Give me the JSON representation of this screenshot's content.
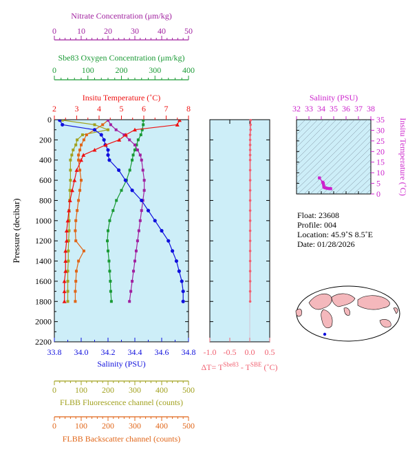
{
  "colors": {
    "nitrate": "#a0209f",
    "oxygen": "#1a9a35",
    "temperature": "#ee1111",
    "salinity": "#1010dd",
    "fluorescence": "#a1a11e",
    "backscatter": "#e06518",
    "delta": "#f06070",
    "ts_salinity": "#cc22cc",
    "panel_bg": "#cdeef8"
  },
  "info": {
    "float": "Float:  23608",
    "profile": "Profile:  004",
    "location": "Location:  45.9˚S   8.5˚E",
    "date": "Date:  01/28/2026"
  },
  "chart_data": [
    {
      "type": "line",
      "name": "main-profile",
      "ylabel": "Pressure (decibar)",
      "ylim": [
        2200,
        0
      ],
      "yticks": [
        0,
        200,
        400,
        600,
        800,
        1000,
        1200,
        1400,
        1600,
        1800,
        2000,
        2200
      ],
      "pressure": [
        5,
        50,
        100,
        150,
        200,
        250,
        300,
        350,
        400,
        500,
        600,
        700,
        800,
        900,
        1000,
        1100,
        1200,
        1300,
        1400,
        1500,
        1600,
        1700,
        1800
      ],
      "axes": [
        {
          "key": "nitrate",
          "label": "Nitrate Concentration (μm/kg)",
          "range": [
            0,
            50
          ],
          "ticks": [
            "0",
            "10",
            "20",
            "30",
            "40",
            "50"
          ]
        },
        {
          "key": "oxygen",
          "label": "Sbe83 Oxygen Concentration (μm/kg)",
          "range": [
            0,
            400
          ],
          "ticks": [
            "0",
            "100",
            "200",
            "300",
            "400"
          ]
        },
        {
          "key": "temperature",
          "label": "Insitu Temperature (˚C)",
          "range": [
            2,
            8
          ],
          "ticks": [
            "2",
            "3",
            "4",
            "5",
            "6",
            "7",
            "8"
          ]
        },
        {
          "key": "salinity",
          "label": "Salinity (PSU)",
          "range": [
            33.8,
            34.8
          ],
          "ticks": [
            "33.8",
            "34.0",
            "34.2",
            "34.4",
            "34.6",
            "34.8"
          ]
        },
        {
          "key": "fluorescence",
          "label": "FLBB Fluorescence channel (counts)",
          "range": [
            0,
            500
          ],
          "ticks": [
            "0",
            "100",
            "200",
            "300",
            "400",
            "500"
          ]
        },
        {
          "key": "backscatter",
          "label": "FLBB Backscatter channel (counts)",
          "range": [
            0,
            500
          ],
          "ticks": [
            "0",
            "100",
            "200",
            "300",
            "400",
            "500"
          ]
        }
      ],
      "series": [
        {
          "key": "nitrate",
          "values": [
            20,
            21,
            23,
            26,
            28,
            30,
            31,
            32,
            32.5,
            33,
            33.5,
            33.5,
            33,
            32.5,
            32,
            31.5,
            31,
            30.5,
            30,
            29.5,
            29,
            28.5,
            28
          ]
        },
        {
          "key": "oxygen",
          "values": [
            265,
            265,
            262,
            258,
            250,
            245,
            240,
            235,
            232,
            225,
            215,
            200,
            185,
            175,
            165,
            160,
            158,
            160,
            163,
            165,
            167,
            168,
            170
          ]
        },
        {
          "key": "temperature",
          "values": [
            7.6,
            7.5,
            5.6,
            5.2,
            4.9,
            4.3,
            3.8,
            3.3,
            3.2,
            3.0,
            2.9,
            2.8,
            2.7,
            2.65,
            2.6,
            2.55,
            2.55,
            2.5,
            2.5,
            2.5,
            2.45,
            2.45,
            2.45
          ]
        },
        {
          "key": "salinity",
          "values": [
            33.84,
            33.86,
            34.1,
            34.15,
            34.17,
            34.18,
            34.2,
            34.2,
            34.21,
            34.28,
            34.33,
            34.38,
            34.45,
            34.5,
            34.55,
            34.6,
            34.65,
            34.68,
            34.71,
            34.73,
            34.75,
            34.76,
            34.76
          ]
        },
        {
          "key": "fluorescence",
          "values": [
            30,
            150,
            200,
            105,
            85,
            80,
            70,
            65,
            60,
            60,
            60,
            58,
            57,
            55,
            55,
            55,
            53,
            52,
            52,
            50,
            50,
            50,
            50
          ]
        },
        {
          "key": "backscatter",
          "values": [
            200,
            180,
            150,
            120,
            110,
            100,
            95,
            90,
            90,
            95,
            100,
            95,
            90,
            85,
            80,
            78,
            80,
            110,
            90,
            82,
            80,
            78,
            78
          ]
        }
      ]
    },
    {
      "type": "line",
      "name": "delta-t",
      "xlabel": "ΔT= T",
      "xlabel_sup1": "Sbe83",
      "xlabel_mid": " - T",
      "xlabel_sup2": "SBE",
      "xlabel_unit": " (˚C)",
      "xlim": [
        -1.0,
        0.5
      ],
      "xticks": [
        "-1.0",
        "-0.5",
        "0.0",
        "0.5"
      ],
      "values": [
        0.02,
        0.02,
        0.02,
        0.01,
        0.01,
        0.01,
        0.01,
        0.01,
        0.01,
        0.01,
        0.01,
        0.01,
        0.01,
        0.01,
        0.01,
        0.01,
        0.01,
        0.01,
        0.01,
        0.01,
        0.01,
        0.01,
        0.01
      ]
    },
    {
      "type": "scatter",
      "name": "ts-diagram",
      "xlabel": "Salinity (PSU)",
      "ylabel": "Insitu Temperature (˚C)",
      "xlim": [
        32,
        38
      ],
      "ylim": [
        0,
        35
      ],
      "xticks": [
        "32",
        "33",
        "34",
        "35",
        "36",
        "37",
        "38"
      ],
      "yticks": [
        "0",
        "5",
        "10",
        "15",
        "20",
        "25",
        "30",
        "35"
      ],
      "points": [
        [
          33.84,
          7.6
        ],
        [
          33.86,
          7.5
        ],
        [
          34.1,
          5.6
        ],
        [
          34.15,
          5.2
        ],
        [
          34.17,
          4.9
        ],
        [
          34.18,
          4.3
        ],
        [
          34.2,
          3.8
        ],
        [
          34.2,
          3.3
        ],
        [
          34.21,
          3.2
        ],
        [
          34.28,
          3.0
        ],
        [
          34.33,
          2.9
        ],
        [
          34.38,
          2.8
        ],
        [
          34.45,
          2.7
        ],
        [
          34.5,
          2.65
        ],
        [
          34.55,
          2.6
        ],
        [
          34.6,
          2.55
        ],
        [
          34.65,
          2.55
        ],
        [
          34.68,
          2.5
        ],
        [
          34.71,
          2.5
        ],
        [
          34.73,
          2.5
        ],
        [
          34.75,
          2.45
        ],
        [
          34.76,
          2.45
        ],
        [
          34.76,
          2.45
        ]
      ]
    }
  ]
}
